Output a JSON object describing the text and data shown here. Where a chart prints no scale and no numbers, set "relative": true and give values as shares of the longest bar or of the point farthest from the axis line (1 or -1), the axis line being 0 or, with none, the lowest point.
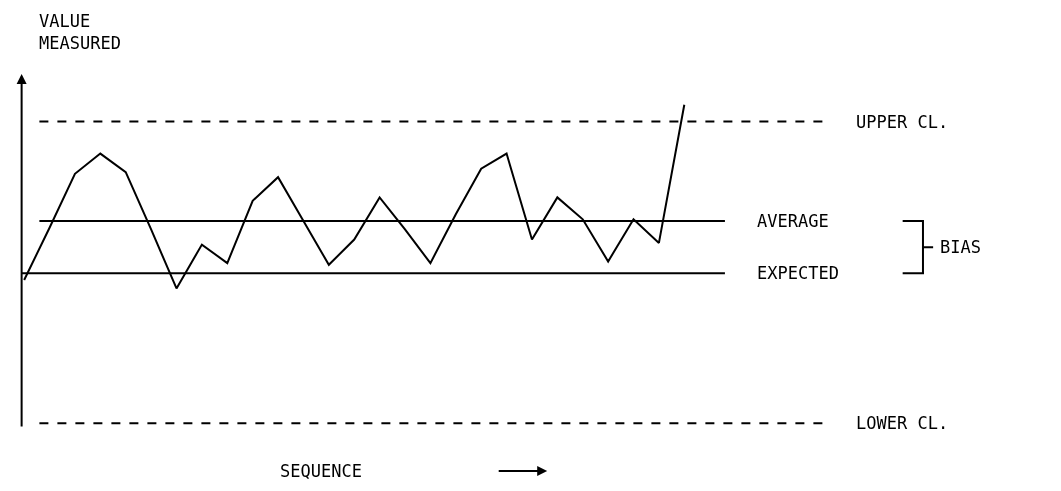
{
  "chart_data": {
    "type": "line",
    "relative": true,
    "ylabel": "VALUE MEASURED",
    "categories": [
      null,
      null,
      null,
      null,
      null,
      null,
      null,
      null,
      null,
      null,
      null,
      null,
      null,
      null,
      null,
      null,
      null,
      null,
      null,
      null,
      null,
      null,
      null,
      null,
      null,
      null,
      null
    ],
    "series": [
      {
        "color": "#000000",
        "values": [
          -0.04,
          0.27,
          0.59,
          0.71,
          0.6,
          0.26,
          -0.09,
          0.17,
          0.06,
          0.43,
          0.57,
          0.31,
          0.05,
          0.2,
          0.45,
          0.26,
          0.06,
          0.35,
          0.62,
          0.71,
          0.2,
          0.45,
          0.32,
          0.07,
          0.32,
          0.18,
          1.0
        ]
      }
    ],
    "ref_lines": [
      {
        "axis": "y",
        "value": 0.9,
        "label": "UPPER CL.",
        "color": "#000000",
        "line_style": "dashed"
      },
      {
        "axis": "y",
        "value": 0.31,
        "label": "AVERAGE",
        "color": "#000000",
        "line_style": "solid"
      },
      {
        "axis": "y",
        "value": 0,
        "label": "EXPECTED",
        "color": "#000000",
        "line_style": "solid"
      },
      {
        "axis": "y",
        "value": -0.89,
        "label": "LOWER CL.",
        "color": "#000000",
        "line_style": "dashed"
      }
    ],
    "annotations": [
      "BIAS",
      "SEQUENCE"
    ],
    "marker": "none",
    "line_style": "solid",
    "legend": false
  }
}
